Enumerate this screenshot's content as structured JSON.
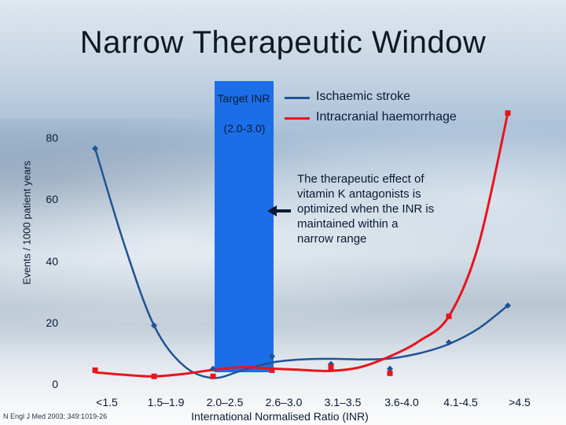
{
  "slide": {
    "title": "Narrow Therapeutic Window",
    "citation": "N Engl J Med 2003; 349:1019-26"
  },
  "target_zone": {
    "label": "Target INR",
    "range_text": "(2.0-3.0)",
    "color": "#1b6ee8"
  },
  "annotation": "The therapeutic effect of vitamin K antagonists is optimized when the INR is maintained within a narrow range",
  "chart_data": {
    "type": "line",
    "title": "",
    "xlabel": "International Normalised Ratio (INR)",
    "ylabel": "Events / 1000 patient years",
    "categories": [
      "<1.5",
      "1.5–1.9",
      "2.0–2.5",
      "2.6–3.0",
      "3.1–3.5",
      "3.6-4.0",
      "4.1-4.5",
      ">4.5"
    ],
    "ylim": [
      0,
      80
    ],
    "yticks": [
      0,
      20,
      40,
      60,
      80
    ],
    "grid": false,
    "legend_position": "top-right",
    "series": [
      {
        "name": "Ischaemic stroke",
        "color": "#1f5494",
        "marker": "diamond",
        "values": [
          76.5,
          19,
          5,
          9,
          6.5,
          5,
          13.5,
          25.5
        ],
        "curve": [
          [
            0,
            76.5
          ],
          [
            0.5,
            45
          ],
          [
            1,
            19
          ],
          [
            1.5,
            6
          ],
          [
            2,
            2
          ],
          [
            2.5,
            4.5
          ],
          [
            3,
            7
          ],
          [
            3.5,
            8
          ],
          [
            4,
            8.2
          ],
          [
            4.5,
            8
          ],
          [
            5,
            8.3
          ],
          [
            5.5,
            10
          ],
          [
            6,
            13
          ],
          [
            6.5,
            18
          ],
          [
            7,
            25.5
          ]
        ]
      },
      {
        "name": "Intracranial haemorrhage",
        "color": "#e8141c",
        "marker": "square",
        "values": [
          4.5,
          2.5,
          2.5,
          4.5,
          5.5,
          3.5,
          22,
          88
        ],
        "curve": [
          [
            0,
            3.8
          ],
          [
            0.5,
            3.0
          ],
          [
            1,
            2.5
          ],
          [
            1.5,
            3.3
          ],
          [
            2,
            4.6
          ],
          [
            2.5,
            5.5
          ],
          [
            3,
            5.0
          ],
          [
            3.5,
            4.6
          ],
          [
            4,
            4.3
          ],
          [
            4.5,
            5.5
          ],
          [
            5,
            9
          ],
          [
            5.5,
            14
          ],
          [
            6,
            22
          ],
          [
            6.5,
            45
          ],
          [
            7,
            88
          ]
        ]
      }
    ]
  }
}
